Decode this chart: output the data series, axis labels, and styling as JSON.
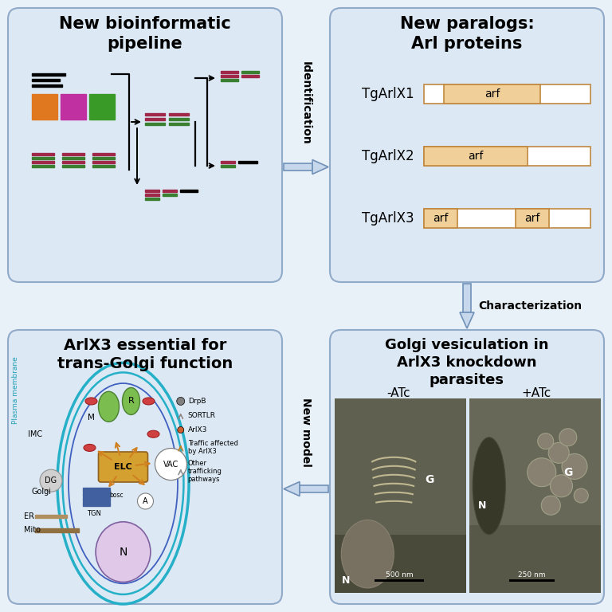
{
  "fig_bg": "#e8f0f8",
  "panel_bg": "#dce9f5",
  "panel_ec": "#90aac8",
  "title_top_left": "New bioinformatic\npipeline",
  "title_top_right": "New paralogs:\nArl proteins",
  "title_bot_left": "ArlX3 essential for\ntrans-Golgi function",
  "title_bot_right": "Golgi vesiculation in\nArlX3 knockdown\nparasites",
  "orange_color": "#e07820",
  "magenta_color": "#c030a0",
  "green_color": "#3a9a28",
  "red_seq_color": "#a02848",
  "green_seq_color": "#3a8030",
  "arf_fill": "#f0d098",
  "arf_edge": "#c08840",
  "identification_label": "Identification",
  "new_model_label": "New model",
  "characterization_label": "Characterization",
  "arrow_fill": "#c8d8ec",
  "arrow_ec": "#7090b8"
}
